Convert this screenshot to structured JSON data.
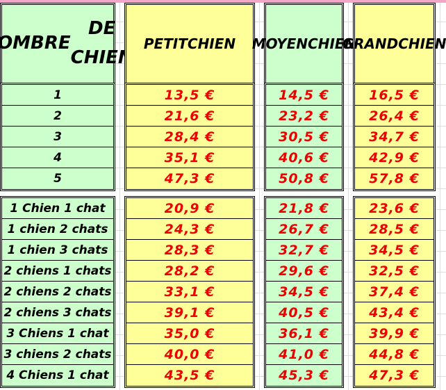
{
  "header": {
    "nombre": [
      "NOMBRE",
      "DE CHIEN"
    ],
    "petit": [
      "PETIT",
      "CHIEN"
    ],
    "moyen": [
      "MOYEN",
      "CHIEN"
    ],
    "grand": [
      "GRAND",
      "CHIEN"
    ]
  },
  "dogs": {
    "labels": [
      "1",
      "2",
      "3",
      "4",
      "5"
    ],
    "petit": [
      "13,5 €",
      "21,6 €",
      "28,4 €",
      "35,1 €",
      "47,3 €"
    ],
    "moyen": [
      "14,5 €",
      "23,2 €",
      "30,5 €",
      "40,6 €",
      "50,8 €"
    ],
    "grand": [
      "16,5 €",
      "26,4 €",
      "34,7 €",
      "42,9 €",
      "57,8 €"
    ]
  },
  "mixed": {
    "labels": [
      "1 Chien 1 chat",
      "1 chien 2 chats",
      "1 chien 3 chats",
      "2 chiens 1 chats",
      "2 chiens 2 chats",
      "2 chiens 3 chats",
      "3 Chiens 1 chat",
      "3 chiens 2 chats",
      "4 Chiens 1 chat"
    ],
    "petit": [
      "20,9 €",
      "24,3 €",
      "28,3 €",
      "28,2 €",
      "33,1 €",
      "39,1 €",
      "35,0 €",
      "40,0 €",
      "43,5 €"
    ],
    "moyen": [
      "21,8 €",
      "26,7 €",
      "32,7 €",
      "29,6 €",
      "34,5 €",
      "40,5 €",
      "36,1 €",
      "41,0 €",
      "45,3 €"
    ],
    "grand": [
      "23,6 €",
      "28,5 €",
      "34,5 €",
      "32,5 €",
      "37,4 €",
      "43,4 €",
      "39,9 €",
      "44,8 €",
      "47,3 €"
    ]
  },
  "colors": {
    "green": "#ccffcc",
    "yellow": "#ffff99",
    "price": "#ee0000"
  }
}
